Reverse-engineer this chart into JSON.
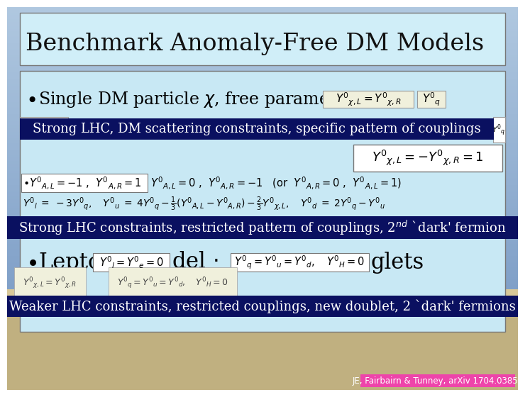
{
  "title": "Benchmark Anomaly-Free DM Models",
  "banner1_text": "Strong LHC, DM scattering constraints, specific pattern of couplings",
  "banner2_text": "Strong LHC constraints, restricted pattern of couplings, 2$^{nd}$ `dark' fermion",
  "banner3_text": "Weaker LHC constraints, restricted couplings, new doublet, 2 `dark' fermions",
  "citation_text": "JE, Fairbairn & Tunney, arXiv 1704.03850",
  "sky_top": "#b0c8e0",
  "sky_mid": "#98b8d8",
  "ground_color": "#c8b888",
  "title_box_bg": "#d0eef8",
  "content_box_bg": "#c8e8f4",
  "dark_banner_color": "#0a1060",
  "citation_bg": "#ee44aa",
  "formula_box_bg": "#f0f0dc",
  "formula_box_bg2": "#ffffff"
}
